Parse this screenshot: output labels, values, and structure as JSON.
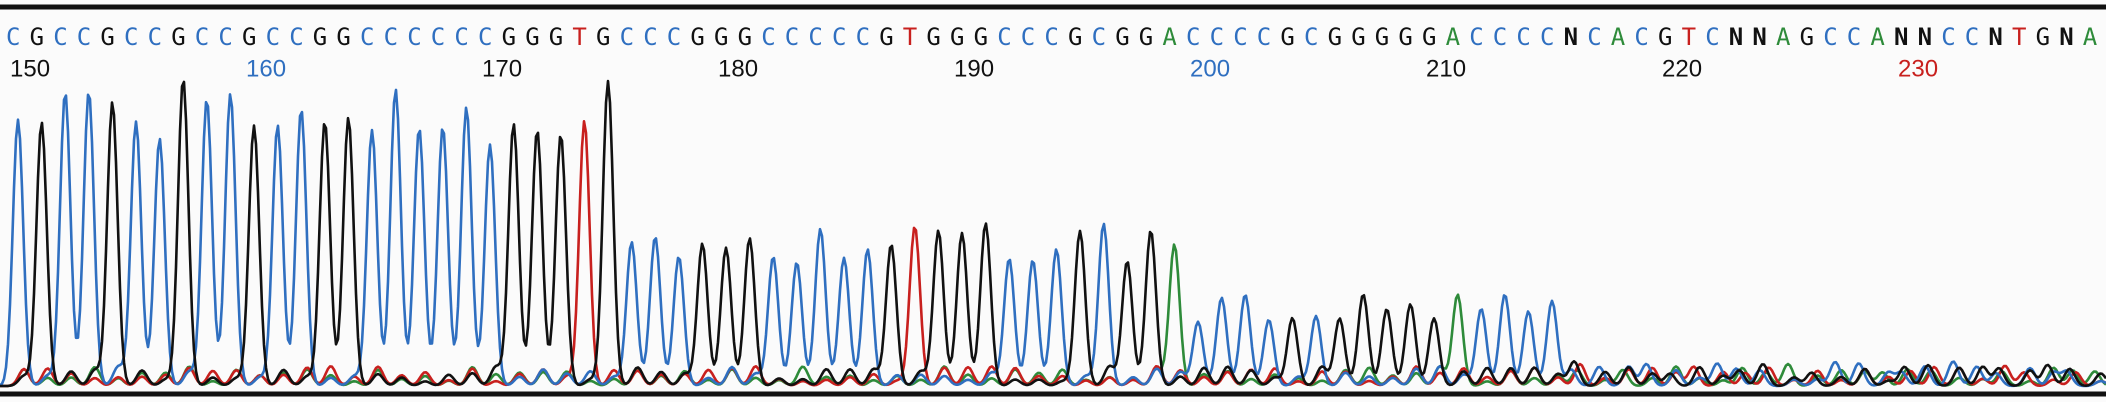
{
  "sequence": {
    "bases": [
      "C",
      "G",
      "C",
      "C",
      "G",
      "C",
      "C",
      "G",
      "C",
      "C",
      "G",
      "C",
      "C",
      "G",
      "G",
      "C",
      "C",
      "C",
      "C",
      "C",
      "C",
      "G",
      "G",
      "G",
      "T",
      "G",
      "C",
      "C",
      "C",
      "G",
      "G",
      "G",
      "C",
      "C",
      "C",
      "C",
      "C",
      "G",
      "T",
      "G",
      "G",
      "G",
      "C",
      "C",
      "C",
      "G",
      "C",
      "G",
      "G",
      "A",
      "C",
      "C",
      "C",
      "C",
      "G",
      "C",
      "G",
      "G",
      "G",
      "G",
      "G",
      "A",
      "C",
      "C",
      "C",
      "C",
      "N",
      "C",
      "A",
      "C",
      "G",
      "T",
      "C",
      "N",
      "N",
      "A",
      "G",
      "C",
      "C",
      "A",
      "N",
      "N",
      "C",
      "C",
      "N",
      "T",
      "G",
      "N",
      "A"
    ],
    "base_colors": {
      "A": "#2e8b3a",
      "C": "#2f6fc0",
      "G": "#111111",
      "T": "#c8201e",
      "N": "#111111"
    },
    "positions": [
      {
        "label": "150",
        "color": "#111111"
      },
      {
        "label": "160",
        "color": "#2f6fc0"
      },
      {
        "label": "170",
        "color": "#111111"
      },
      {
        "label": "180",
        "color": "#111111"
      },
      {
        "label": "190",
        "color": "#111111"
      },
      {
        "label": "200",
        "color": "#2f6fc0"
      },
      {
        "label": "210",
        "color": "#111111"
      },
      {
        "label": "220",
        "color": "#111111"
      },
      {
        "label": "230",
        "color": "#c8201e"
      }
    ]
  }
}
